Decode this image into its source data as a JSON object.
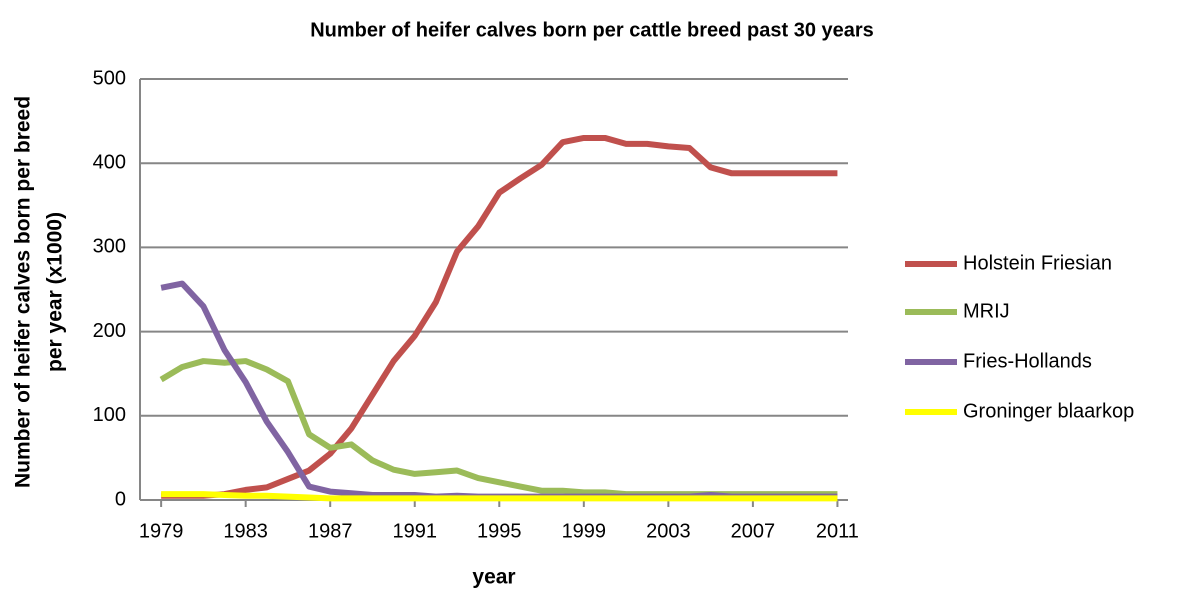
{
  "chart_data": {
    "type": "line",
    "title": "Number of heifer calves born per cattle breed past 30 years",
    "x_label": "year",
    "y_label": [
      "Number of heifer calves born per breed",
      "per year (x1000)"
    ],
    "x": [
      1979,
      1980,
      1981,
      1982,
      1983,
      1984,
      1985,
      1986,
      1987,
      1988,
      1989,
      1990,
      1991,
      1992,
      1993,
      1994,
      1995,
      1996,
      1997,
      1998,
      1999,
      2000,
      2001,
      2002,
      2003,
      2004,
      2005,
      2006,
      2007,
      2008,
      2009,
      2010,
      2011
    ],
    "xlim": [
      1978,
      2011.5
    ],
    "xticks": [
      1979,
      1983,
      1987,
      1991,
      1995,
      1999,
      2003,
      2007,
      2011
    ],
    "ylim": [
      0,
      500
    ],
    "yticks": [
      0,
      100,
      200,
      300,
      400,
      500
    ],
    "grid": true,
    "legend": "right",
    "series": [
      {
        "name": "Holstein Friesian",
        "color": "#c0504d",
        "values": [
          5,
          5,
          5,
          7,
          12,
          15,
          25,
          35,
          55,
          85,
          125,
          165,
          195,
          235,
          295,
          325,
          365,
          382,
          398,
          425,
          430,
          430,
          423,
          423,
          420,
          418,
          395,
          388,
          388,
          388,
          388,
          388,
          388
        ]
      },
      {
        "name": "MRIJ",
        "color": "#9bbb59",
        "values": [
          143,
          158,
          165,
          163,
          165,
          155,
          141,
          78,
          62,
          66,
          47,
          36,
          31,
          33,
          35,
          26,
          21,
          16,
          11,
          11,
          9,
          9,
          7,
          7,
          7,
          7,
          7,
          7,
          7,
          7,
          7,
          7,
          7
        ]
      },
      {
        "name": "Fries-Hollands",
        "color": "#8064a2",
        "values": [
          252,
          257,
          230,
          178,
          140,
          93,
          57,
          16,
          10,
          8,
          6,
          6,
          6,
          4,
          5,
          4,
          4,
          4,
          4,
          4,
          4,
          4,
          4,
          4,
          4,
          4,
          6,
          4,
          4,
          4,
          4,
          4,
          4
        ]
      },
      {
        "name": "Groninger blaarkop",
        "color": "#ffff00",
        "values": [
          7,
          7,
          7,
          6,
          5,
          5,
          4,
          3,
          2,
          2,
          2,
          2,
          2,
          2,
          2,
          2,
          2,
          2,
          2,
          2,
          2,
          2,
          2,
          2,
          2,
          2,
          2,
          2,
          2,
          2,
          2,
          2,
          2
        ]
      }
    ]
  }
}
